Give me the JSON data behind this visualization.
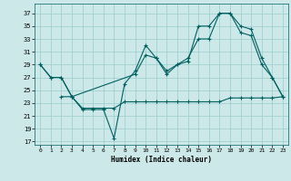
{
  "background_color": "#cce8e8",
  "grid_color": "#99cccc",
  "line_color": "#006060",
  "xlabel": "Humidex (Indice chaleur)",
  "xlim": [
    -0.5,
    23.5
  ],
  "ylim": [
    16.5,
    38.5
  ],
  "yticks": [
    17,
    19,
    21,
    23,
    25,
    27,
    29,
    31,
    33,
    35,
    37
  ],
  "xticks": [
    0,
    1,
    2,
    3,
    4,
    5,
    6,
    7,
    8,
    9,
    10,
    11,
    12,
    13,
    14,
    15,
    16,
    17,
    18,
    19,
    20,
    21,
    22,
    23
  ],
  "line1_x": [
    0,
    1,
    2,
    3,
    4,
    5,
    6,
    7,
    8,
    9,
    10,
    11,
    12,
    13,
    14,
    15,
    16,
    17,
    18,
    19,
    20,
    21,
    22,
    23
  ],
  "line1_y": [
    29,
    27,
    27,
    24,
    22,
    22,
    22,
    17.5,
    26,
    28,
    32,
    30,
    27.5,
    29,
    29.5,
    35,
    35,
    37,
    37,
    35,
    34.5,
    30,
    27,
    24
  ],
  "line2_x": [
    0,
    1,
    2,
    3,
    9,
    10,
    11,
    12,
    13,
    14,
    15,
    16,
    17,
    18,
    19,
    20,
    21,
    22,
    23
  ],
  "line2_y": [
    29,
    27,
    27,
    24,
    27.5,
    30.5,
    30,
    28,
    29,
    30,
    33,
    33,
    37,
    37,
    34,
    33.5,
    29,
    27,
    24
  ],
  "line3_x": [
    2,
    3,
    4,
    5,
    6,
    7,
    8,
    9,
    10,
    11,
    12,
    13,
    14,
    15,
    16,
    17,
    18,
    19,
    20,
    21,
    22,
    23
  ],
  "line3_y": [
    24,
    24,
    22.2,
    22.2,
    22.2,
    22.2,
    23.2,
    23.2,
    23.2,
    23.2,
    23.2,
    23.2,
    23.2,
    23.2,
    23.2,
    23.2,
    23.8,
    23.8,
    23.8,
    23.8,
    23.8,
    24
  ]
}
